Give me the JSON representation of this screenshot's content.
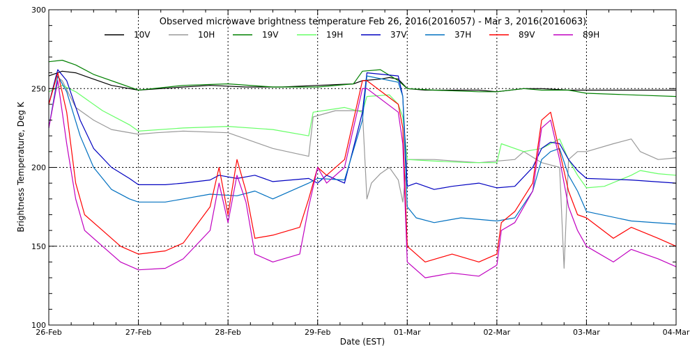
{
  "chart_data": {
    "type": "line",
    "title": "Observed microwave brightness temperature Feb 26, 2016(2016057) - Mar  3, 2016(2016063)",
    "xlabel": "Date (EST)",
    "ylabel": "Brightness Temperature, Deg K",
    "ylim": [
      100,
      300
    ],
    "xlim": [
      0,
      7
    ],
    "yticks": [
      "100",
      "150",
      "200",
      "250",
      "300"
    ],
    "ytick_values": [
      100,
      150,
      200,
      250,
      300
    ],
    "xticks": [
      "26-Feb",
      "27-Feb",
      "28-Feb",
      "29-Feb",
      "01-Mar",
      "02-Mar",
      "03-Mar",
      "04-Mar"
    ],
    "xtick_values": [
      0,
      1,
      2,
      3,
      4,
      5,
      6,
      7
    ],
    "grid": "dotted",
    "legend_position": "top",
    "series": [
      {
        "name": "10V",
        "color": "#000000",
        "x": [
          0,
          0.15,
          0.3,
          0.5,
          0.7,
          1.0,
          1.5,
          1.8,
          2.2,
          2.6,
          3.0,
          3.4,
          3.5,
          3.7,
          3.8,
          3.9,
          4.0,
          4.2,
          4.5,
          4.8,
          5.0,
          5.3,
          5.5,
          5.8,
          6.0,
          6.5,
          7.0
        ],
        "y": [
          258,
          261,
          260,
          256,
          252,
          249,
          251,
          252,
          251,
          251,
          252,
          253,
          255,
          256,
          257,
          256,
          250,
          249,
          249,
          249,
          248,
          250,
          250,
          249,
          249,
          249,
          249
        ]
      },
      {
        "name": "10H",
        "color": "#999999",
        "x": [
          0,
          0.08,
          0.15,
          0.3,
          0.5,
          0.7,
          1.0,
          1.2,
          1.5,
          2.0,
          2.5,
          2.9,
          2.95,
          3.2,
          3.5,
          3.55,
          3.6,
          3.7,
          3.8,
          3.9,
          3.95,
          4.0,
          4.3,
          4.8,
          5.2,
          5.3,
          5.5,
          5.7,
          5.75,
          5.8,
          5.9,
          6.0,
          6.3,
          6.5,
          6.6,
          6.8,
          7.0
        ],
        "y": [
          240,
          258,
          255,
          238,
          230,
          224,
          221,
          222,
          223,
          222,
          212,
          207,
          232,
          236,
          236,
          180,
          190,
          196,
          200,
          192,
          178,
          205,
          205,
          203,
          205,
          210,
          203,
          200,
          136,
          205,
          210,
          210,
          215,
          218,
          210,
          205,
          206
        ]
      },
      {
        "name": "19V",
        "color": "#008000",
        "x": [
          0,
          0.15,
          0.3,
          0.5,
          0.8,
          1.0,
          1.5,
          2.0,
          2.5,
          3.0,
          3.4,
          3.5,
          3.7,
          3.9,
          4.0,
          4.3,
          4.8,
          5.0,
          5.3,
          5.5,
          5.8,
          6.0,
          6.5,
          7.0
        ],
        "y": [
          267,
          268,
          265,
          259,
          253,
          249,
          252,
          253,
          251,
          251,
          253,
          261,
          262,
          255,
          250,
          249,
          248,
          248,
          250,
          249,
          249,
          247,
          246,
          245
        ]
      },
      {
        "name": "19H",
        "color": "#66ff66",
        "x": [
          0,
          0.15,
          0.3,
          0.6,
          0.9,
          1.0,
          1.5,
          2.0,
          2.5,
          2.9,
          2.95,
          3.3,
          3.5,
          3.55,
          3.8,
          3.9,
          3.95,
          4.0,
          4.3,
          4.7,
          5.0,
          5.05,
          5.3,
          5.5,
          5.7,
          5.8,
          5.9,
          6.0,
          6.2,
          6.5,
          6.6,
          6.8,
          7.0
        ],
        "y": [
          248,
          252,
          248,
          236,
          227,
          223,
          225,
          226,
          224,
          220,
          235,
          238,
          235,
          245,
          246,
          240,
          232,
          205,
          204,
          203,
          203,
          215,
          210,
          212,
          218,
          205,
          195,
          187,
          188,
          195,
          198,
          196,
          195
        ]
      },
      {
        "name": "37V",
        "color": "#0000c0",
        "x": [
          0,
          0.1,
          0.2,
          0.35,
          0.5,
          0.7,
          0.9,
          1.0,
          1.3,
          1.5,
          1.8,
          1.9,
          2.1,
          2.3,
          2.5,
          2.9,
          3.0,
          3.1,
          3.3,
          3.5,
          3.55,
          3.9,
          3.95,
          4.0,
          4.1,
          4.3,
          4.5,
          4.8,
          5.0,
          5.2,
          5.4,
          5.5,
          5.6,
          5.7,
          5.8,
          5.9,
          6.0,
          6.5,
          7.0
        ],
        "y": [
          240,
          262,
          255,
          230,
          212,
          200,
          193,
          189,
          189,
          190,
          192,
          195,
          193,
          195,
          191,
          193,
          190,
          195,
          190,
          235,
          260,
          258,
          245,
          188,
          190,
          186,
          188,
          190,
          187,
          188,
          200,
          212,
          216,
          215,
          205,
          198,
          193,
          192,
          190
        ]
      },
      {
        "name": "37H",
        "color": "#0070c0",
        "x": [
          0,
          0.1,
          0.2,
          0.35,
          0.5,
          0.7,
          0.9,
          1.0,
          1.3,
          1.5,
          1.8,
          2.1,
          2.3,
          2.5,
          2.9,
          3.0,
          3.3,
          3.5,
          3.55,
          3.9,
          3.95,
          4.0,
          4.1,
          4.3,
          4.6,
          5.0,
          5.2,
          5.4,
          5.5,
          5.6,
          5.7,
          5.8,
          5.9,
          6.0,
          6.5,
          7.0
        ],
        "y": [
          225,
          258,
          248,
          220,
          200,
          186,
          180,
          178,
          178,
          180,
          183,
          182,
          185,
          180,
          190,
          193,
          192,
          230,
          258,
          254,
          245,
          175,
          168,
          165,
          168,
          166,
          168,
          185,
          205,
          210,
          212,
          195,
          185,
          172,
          166,
          164
        ]
      },
      {
        "name": "89V",
        "color": "#ff0000",
        "x": [
          0,
          0.1,
          0.2,
          0.3,
          0.4,
          0.6,
          0.8,
          1.0,
          1.3,
          1.5,
          1.8,
          1.9,
          2.0,
          2.1,
          2.2,
          2.3,
          2.5,
          2.8,
          2.9,
          3.0,
          3.1,
          3.3,
          3.5,
          3.55,
          3.9,
          3.95,
          4.0,
          4.2,
          4.5,
          4.8,
          5.0,
          5.05,
          5.2,
          5.4,
          5.5,
          5.6,
          5.7,
          5.8,
          5.9,
          6.0,
          6.3,
          6.5,
          6.8,
          7.0
        ],
        "y": [
          240,
          260,
          235,
          190,
          170,
          160,
          150,
          145,
          147,
          152,
          175,
          200,
          170,
          205,
          185,
          155,
          157,
          162,
          180,
          200,
          195,
          205,
          255,
          255,
          240,
          225,
          150,
          140,
          145,
          140,
          145,
          165,
          172,
          190,
          230,
          235,
          210,
          185,
          170,
          168,
          155,
          162,
          155,
          150
        ]
      },
      {
        "name": "89H",
        "color": "#c000c0",
        "x": [
          0,
          0.1,
          0.2,
          0.3,
          0.4,
          0.6,
          0.8,
          1.0,
          1.3,
          1.5,
          1.8,
          1.9,
          2.0,
          2.1,
          2.2,
          2.3,
          2.5,
          2.8,
          2.9,
          3.0,
          3.1,
          3.3,
          3.5,
          3.55,
          3.9,
          3.95,
          4.0,
          4.2,
          4.5,
          4.8,
          5.0,
          5.05,
          5.2,
          5.4,
          5.5,
          5.6,
          5.7,
          5.8,
          5.9,
          6.0,
          6.3,
          6.5,
          6.8,
          7.0
        ],
        "y": [
          225,
          255,
          215,
          180,
          160,
          150,
          140,
          135,
          136,
          142,
          160,
          190,
          165,
          195,
          178,
          145,
          140,
          145,
          175,
          200,
          190,
          200,
          250,
          250,
          235,
          215,
          140,
          130,
          133,
          131,
          138,
          160,
          165,
          185,
          225,
          230,
          205,
          175,
          160,
          150,
          140,
          148,
          142,
          137
        ]
      }
    ]
  }
}
